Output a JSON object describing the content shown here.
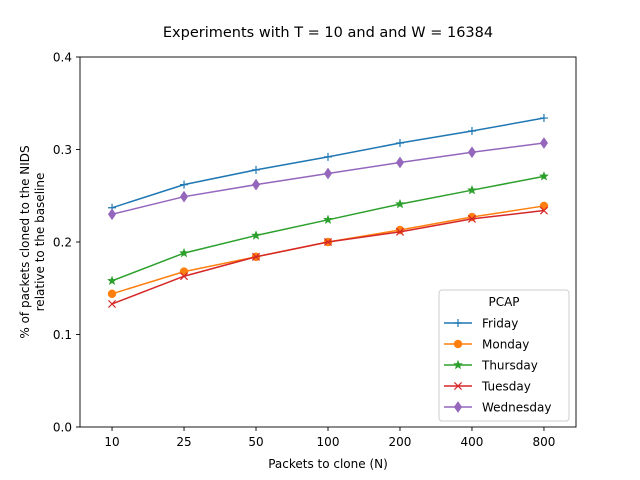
{
  "chart_data": {
    "type": "line",
    "title": "Experiments with T = 10 and and W = 16384",
    "xlabel": "Packets to clone (N)",
    "ylabel": [
      "% of packets cloned to the NIDS",
      "relative to the baseline"
    ],
    "categories": [
      "10",
      "25",
      "50",
      "100",
      "200",
      "400",
      "800"
    ],
    "ylim": [
      0.0,
      0.4
    ],
    "yticks": [
      "0.0",
      "0.1",
      "0.2",
      "0.3",
      "0.4"
    ],
    "grid": false,
    "legend": {
      "title": "PCAP",
      "placement": "lower-right"
    },
    "series": [
      {
        "name": "Friday",
        "color": "#1f77b4",
        "marker": "plus",
        "values": [
          0.237,
          0.262,
          0.278,
          0.292,
          0.307,
          0.32,
          0.334
        ]
      },
      {
        "name": "Monday",
        "color": "#ff7f0e",
        "marker": "circle",
        "values": [
          0.144,
          0.168,
          0.184,
          0.2,
          0.213,
          0.227,
          0.239
        ]
      },
      {
        "name": "Thursday",
        "color": "#2ca02c",
        "marker": "star",
        "values": [
          0.158,
          0.188,
          0.207,
          0.224,
          0.241,
          0.256,
          0.271
        ]
      },
      {
        "name": "Tuesday",
        "color": "#d62728",
        "marker": "x",
        "values": [
          0.133,
          0.163,
          0.184,
          0.2,
          0.211,
          0.225,
          0.234
        ]
      },
      {
        "name": "Wednesday",
        "color": "#9467bd",
        "marker": "diamond",
        "values": [
          0.23,
          0.249,
          0.262,
          0.274,
          0.286,
          0.297,
          0.307
        ]
      }
    ]
  }
}
